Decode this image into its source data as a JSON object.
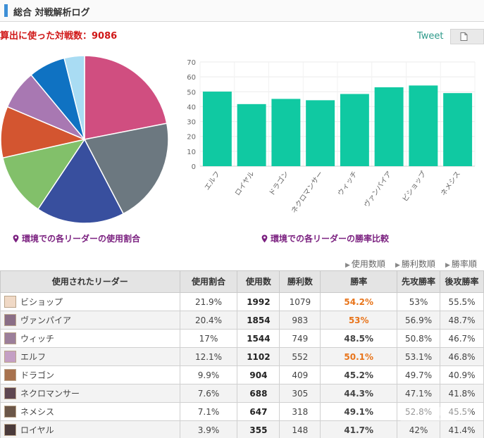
{
  "header": {
    "title": "総合 対戦解析ログ"
  },
  "summary": {
    "total_text": "算出に使った対戦数：9086"
  },
  "actions": {
    "tweet_label": "Tweet",
    "doc_icon": "document-icon"
  },
  "captions": {
    "pie": "環境での各リーダーの使用割合",
    "bar": "環境での各リーダーの勝率比較",
    "pin_icon": "map-pin-icon"
  },
  "sort_links": [
    "使用数順",
    "勝利数順",
    "勝率順"
  ],
  "colors": {
    "accent": "#3d8fd6",
    "total_red": "#d01818",
    "caption_purple": "#7b2180",
    "bar_teal": "#10c9a2",
    "rate_orange": "#e8741a"
  },
  "chart_data": [
    {
      "type": "pie",
      "slices": [
        {
          "label": "ビショップ",
          "value": 21.9,
          "color": "#d04e80"
        },
        {
          "label": "ヴァンパイア",
          "value": 20.4,
          "color": "#6c7880"
        },
        {
          "label": "ウィッチ",
          "value": 17.0,
          "color": "#384f9e"
        },
        {
          "label": "エルフ",
          "value": 12.1,
          "color": "#82c06a"
        },
        {
          "label": "ドラゴン",
          "value": 9.9,
          "color": "#d35530"
        },
        {
          "label": "ネクロマンサー",
          "value": 7.6,
          "color": "#a878b2"
        },
        {
          "label": "ネメシス",
          "value": 7.1,
          "color": "#0f72c2"
        },
        {
          "label": "ロイヤル",
          "value": 3.9,
          "color": "#a9dcf3"
        }
      ]
    },
    {
      "type": "bar",
      "categories": [
        "エルフ",
        "ロイヤル",
        "ドラゴン",
        "ネクロマンサー",
        "ウィッチ",
        "ヴァンパイア",
        "ビショップ",
        "ネメシス"
      ],
      "values": [
        50.1,
        41.7,
        45.2,
        44.3,
        48.5,
        53.0,
        54.2,
        49.1
      ],
      "yticks": [
        0,
        10,
        20,
        30,
        40,
        50,
        60,
        70
      ],
      "ylim": [
        0,
        70
      ],
      "grid": true
    }
  ],
  "table": {
    "headers": [
      "使用されたリーダー",
      "使用割合",
      "使用数",
      "勝利数",
      "勝率",
      "先攻勝率",
      "後攻勝率"
    ],
    "rows": [
      {
        "leader": "ビショップ",
        "share": "21.9%",
        "uses": "1992",
        "wins": "1079",
        "rate": "54.2%",
        "first": "53%",
        "second": "55.5%",
        "highlight": true,
        "avatar_color": "#f0d9c6"
      },
      {
        "leader": "ヴァンパイア",
        "share": "20.4%",
        "uses": "1854",
        "wins": "983",
        "rate": "53%",
        "first": "56.9%",
        "second": "48.7%",
        "highlight": true,
        "avatar_color": "#8a6e86"
      },
      {
        "leader": "ウィッチ",
        "share": "17%",
        "uses": "1544",
        "wins": "749",
        "rate": "48.5%",
        "first": "50.8%",
        "second": "46.7%",
        "highlight": false,
        "avatar_color": "#9c7f9a"
      },
      {
        "leader": "エルフ",
        "share": "12.1%",
        "uses": "1102",
        "wins": "552",
        "rate": "50.1%",
        "first": "53.1%",
        "second": "46.8%",
        "highlight": true,
        "avatar_color": "#c49fc4"
      },
      {
        "leader": "ドラゴン",
        "share": "9.9%",
        "uses": "904",
        "wins": "409",
        "rate": "45.2%",
        "first": "49.7%",
        "second": "40.9%",
        "highlight": false,
        "avatar_color": "#a8724e"
      },
      {
        "leader": "ネクロマンサー",
        "share": "7.6%",
        "uses": "688",
        "wins": "305",
        "rate": "44.3%",
        "first": "47.1%",
        "second": "41.8%",
        "highlight": false,
        "avatar_color": "#5e4650"
      },
      {
        "leader": "ネメシス",
        "share": "7.1%",
        "uses": "647",
        "wins": "318",
        "rate": "49.1%",
        "first": "52.8%",
        "second": "45.5%",
        "highlight": false,
        "avatar_color": "#6b5648"
      },
      {
        "leader": "ロイヤル",
        "share": "3.9%",
        "uses": "355",
        "wins": "148",
        "rate": "41.7%",
        "first": "42%",
        "second": "41.4%",
        "highlight": false,
        "avatar_color": "#4a3a3a"
      }
    ]
  }
}
